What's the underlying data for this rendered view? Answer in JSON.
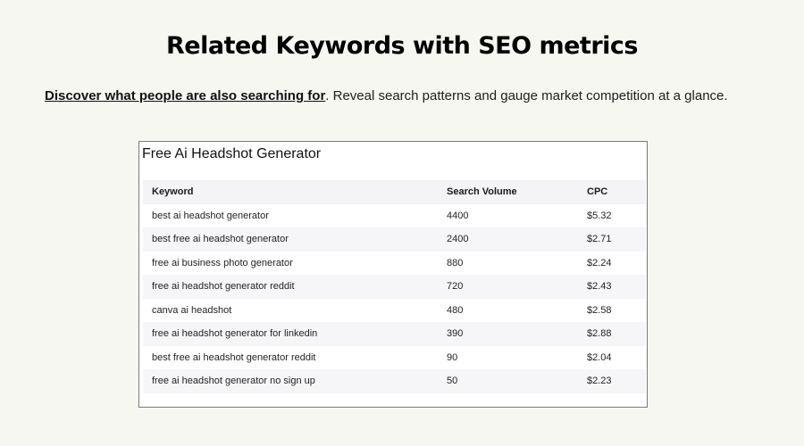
{
  "page": {
    "title": "Related Keywords with SEO metrics",
    "intro_link": "Discover what people are also searching for",
    "intro_text": ". Reveal search patterns and gauge market competition at a glance."
  },
  "card": {
    "title": "Free Ai Headshot Generator",
    "columns": [
      "Keyword",
      "Search Volume",
      "CPC"
    ],
    "rows": [
      {
        "keyword": "best ai headshot generator",
        "volume": "4400",
        "cpc": "$5.32"
      },
      {
        "keyword": "best free ai headshot generator",
        "volume": "2400",
        "cpc": "$2.71"
      },
      {
        "keyword": "free ai business photo generator",
        "volume": "880",
        "cpc": "$2.24"
      },
      {
        "keyword": "free ai headshot generator reddit",
        "volume": "720",
        "cpc": "$2.43"
      },
      {
        "keyword": "canva ai headshot",
        "volume": "480",
        "cpc": "$2.58"
      },
      {
        "keyword": "free ai headshot generator for linkedin",
        "volume": "390",
        "cpc": "$2.88"
      },
      {
        "keyword": "best free ai headshot generator reddit",
        "volume": "90",
        "cpc": "$2.04"
      },
      {
        "keyword": "free ai headshot generator no sign up",
        "volume": "50",
        "cpc": "$2.23"
      }
    ]
  }
}
